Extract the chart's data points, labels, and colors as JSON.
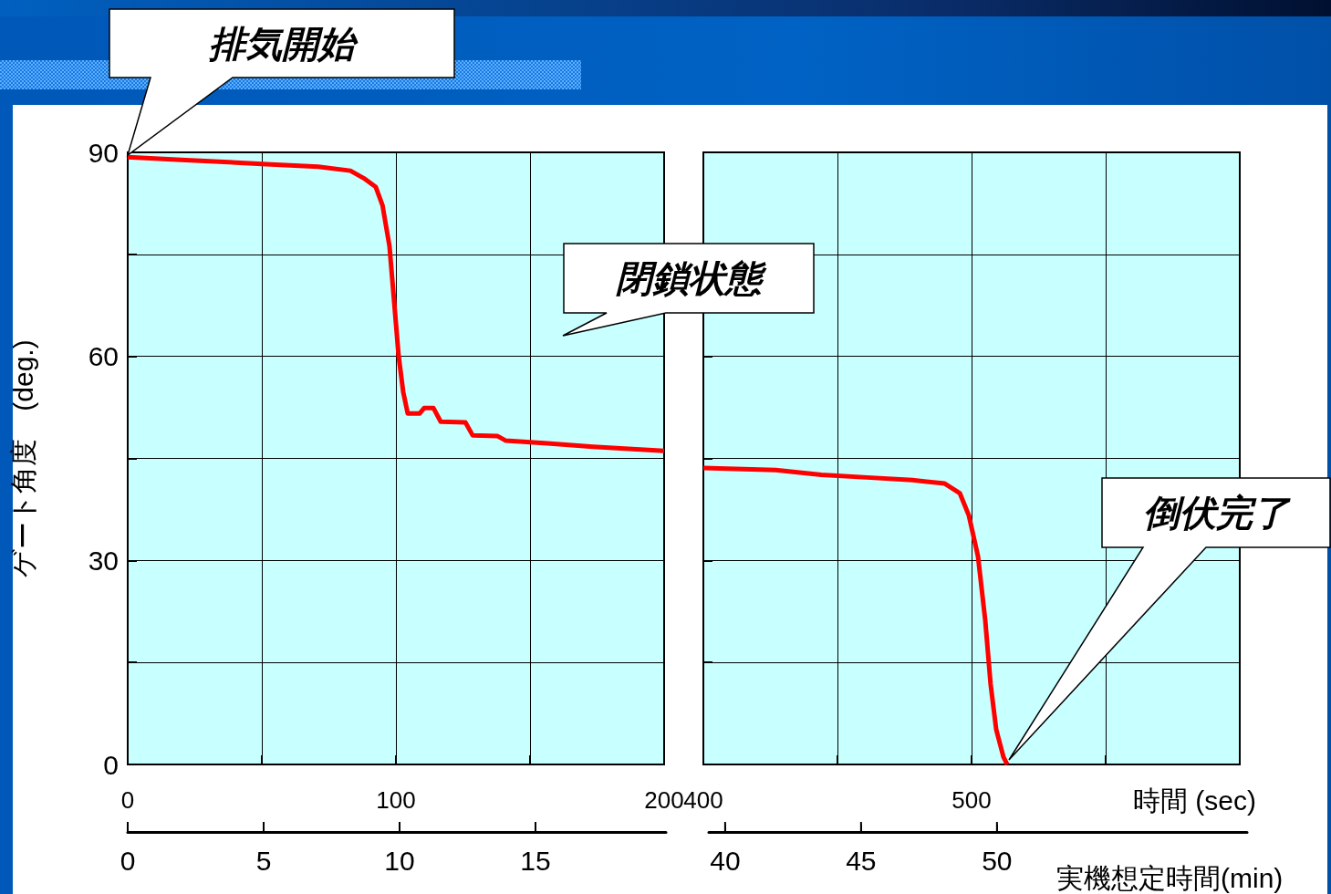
{
  "chart_data": [
    {
      "type": "line",
      "ylabel": "ゲート角度　(deg.)",
      "color": "#ff0000",
      "x": [
        0,
        20,
        50,
        71,
        83,
        88,
        92.5,
        95,
        97.6,
        99.3,
        101,
        102.7,
        104.4,
        108.8,
        110.5,
        114,
        116.7,
        125.9,
        128.6,
        137.8,
        141,
        156.5,
        173.5,
        200
      ],
      "values": [
        89.3,
        88.9,
        88.3,
        87.9,
        87.3,
        86.2,
        84.9,
        82.2,
        76.2,
        68.2,
        60.1,
        54.8,
        51.6,
        51.6,
        52.4,
        52.4,
        50.4,
        50.3,
        48.4,
        48.3,
        47.6,
        47.2,
        46.7,
        46.1
      ],
      "xlim": [
        0,
        200
      ],
      "xticks": [
        0,
        {
          "value": 50,
          "label": null
        },
        100,
        {
          "value": 150,
          "label": null
        },
        200
      ],
      "x2lim": [
        0,
        19.8
      ],
      "x2ticks": [
        0,
        5,
        10,
        15
      ],
      "ylim": [
        0,
        90
      ],
      "yticks": [
        0,
        {
          "value": 15,
          "label": null
        },
        30,
        {
          "value": 45,
          "label": null
        },
        60,
        {
          "value": 75,
          "label": null
        },
        90
      ],
      "grid": true,
      "annotations": [
        "排気開始",
        "閉鎖状態"
      ]
    },
    {
      "type": "line",
      "xlabel": "時間 (sec)",
      "x2label": "実機想定時間(min)",
      "color": "#ff0000",
      "x": [
        400,
        427,
        444,
        461,
        478,
        490,
        495.6,
        499,
        502.4,
        505.1,
        507.1,
        509.2,
        511.9,
        513.3
      ],
      "values": [
        43.6,
        43.3,
        42.6,
        42.2,
        41.8,
        41.3,
        39.9,
        36.6,
        30.6,
        21.2,
        11.8,
        5.1,
        1.1,
        0
      ],
      "xlim": [
        400,
        600
      ],
      "xticks": [
        400,
        {
          "value": 450,
          "label": null
        },
        500,
        {
          "value": 550,
          "label": null
        },
        {
          "value": 600,
          "label": null
        }
      ],
      "x2lim": [
        39.4,
        59.2
      ],
      "x2ticks": [
        40,
        45,
        50
      ],
      "ylim": [
        0,
        90
      ],
      "yticks": [
        0,
        {
          "value": 15,
          "label": null
        },
        30,
        {
          "value": 45,
          "label": null
        },
        60,
        {
          "value": 75,
          "label": null
        },
        90
      ],
      "grid": true,
      "tick_labels": "x",
      "annotations": [
        "倒伏完了"
      ]
    }
  ]
}
